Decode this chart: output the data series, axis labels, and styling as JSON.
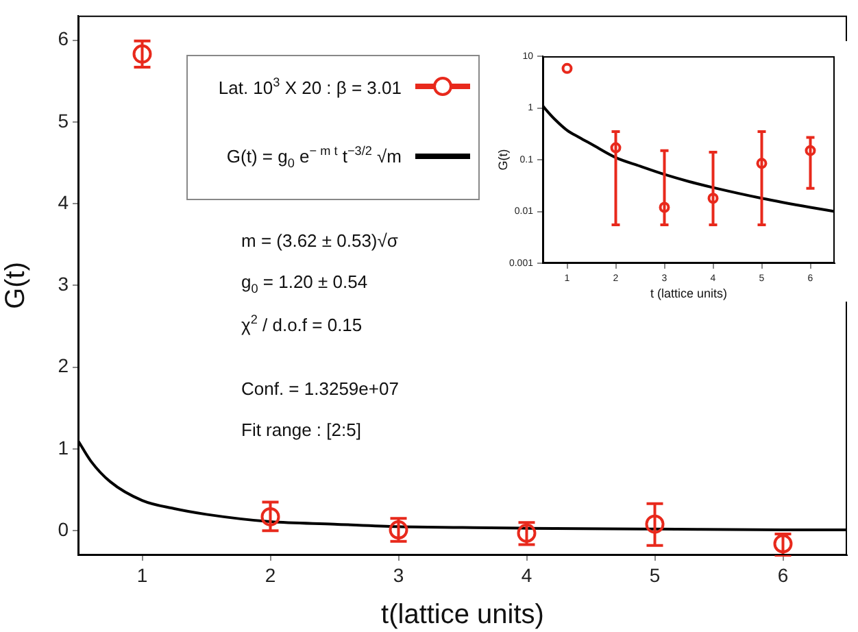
{
  "chart_data": [
    {
      "type": "scatter",
      "xlabel": "t(lattice units)",
      "ylabel": "G(t)",
      "xlim": [
        0.5,
        6.5
      ],
      "xticks": [
        1,
        2,
        3,
        4,
        5,
        6
      ],
      "ylim": [
        -0.3,
        6.3
      ],
      "yticks": [
        0,
        1,
        2,
        3,
        4,
        5,
        6
      ],
      "legend": "top",
      "marker": "circle",
      "series": [
        {
          "name": "Lat. 10$^{3}$ X 20 : β = 3.01",
          "type": "scatter",
          "color": "#e8291c",
          "x": [
            1,
            2,
            3,
            4,
            5,
            6
          ],
          "values": [
            5.83,
            0.17,
            0.01,
            -0.03,
            0.08,
            -0.16
          ],
          "errors": [
            [
              5.67,
              5.99
            ],
            [
              0.0,
              0.35
            ],
            [
              -0.13,
              0.15
            ],
            [
              -0.17,
              0.1
            ],
            [
              -0.18,
              0.33
            ],
            [
              -0.3,
              -0.04
            ]
          ]
        },
        {
          "name": "G(t) = g$_{0}$ e$^{− m t}$ t$^{−3/2}$ √m",
          "type": "line",
          "color": "#000000",
          "marker": "none",
          "line_style": "solid",
          "x": [
            0.5,
            0.6,
            0.75,
            1,
            1.25,
            1.5,
            2,
            2.5,
            3,
            3.5,
            4,
            5,
            6,
            6.5
          ],
          "values": [
            1.1,
            0.85,
            0.6,
            0.37,
            0.27,
            0.2,
            0.11,
            0.08,
            0.05,
            0.04,
            0.03,
            0.02,
            0.01,
            0.01
          ]
        }
      ],
      "annotations": [
        "m = (3.62 ± 0.53)√σ",
        "g$_{0}$ = 1.20 ± 0.54",
        "χ$^{2}$ / d.o.f = 0.15",
        "Conf. = 1.3259e+07",
        "Fit range : [2:5]"
      ]
    },
    {
      "type": "scatter",
      "xlabel": "t (lattice units)",
      "ylabel": "G(t)",
      "xlim": [
        0.5,
        6.5
      ],
      "xticks": [
        1,
        2,
        3,
        4,
        5,
        6
      ],
      "ylim": [
        0.001,
        10
      ],
      "yticks": [
        0.001,
        0.01,
        0.1,
        1,
        10
      ],
      "log": "y",
      "marker": "circle",
      "series": [
        {
          "type": "scatter",
          "color": "#e8291c",
          "x": [
            1,
            2,
            3,
            4,
            5,
            6
          ],
          "values": [
            5.8,
            0.17,
            0.012,
            0.018,
            0.085,
            0.15
          ],
          "errors": [
            null,
            [
              0.0055,
              0.35
            ],
            [
              0.0055,
              0.15
            ],
            [
              0.0055,
              0.14
            ],
            [
              0.0055,
              0.35
            ],
            [
              0.028,
              0.27
            ]
          ]
        },
        {
          "type": "line",
          "color": "#000000",
          "marker": "none",
          "line_style": "solid",
          "x": [
            0.5,
            0.6,
            0.75,
            1,
            1.25,
            1.5,
            2,
            2.5,
            3,
            3.5,
            4,
            5,
            6,
            6.5
          ],
          "values": [
            1.1,
            0.85,
            0.6,
            0.37,
            0.27,
            0.2,
            0.11,
            0.075,
            0.052,
            0.038,
            0.029,
            0.018,
            0.012,
            0.01
          ]
        }
      ]
    }
  ]
}
